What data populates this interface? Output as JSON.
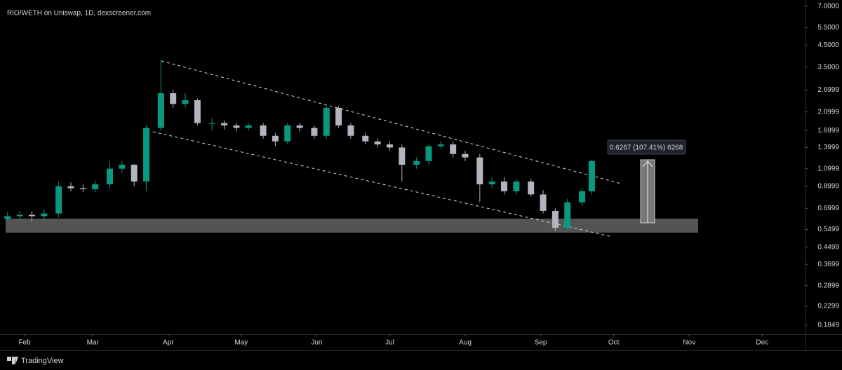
{
  "chart_data": {
    "type": "candlestick",
    "title": "RIO/WETH on Uniswap, 1D, dexscreener.com",
    "annotation": "0.6267 (107.41%) 6268",
    "x": [
      -7,
      -2,
      3,
      8,
      14,
      19,
      24,
      29,
      35,
      40,
      45,
      50,
      56,
      61,
      66,
      71,
      77,
      82,
      87,
      92,
      98,
      103,
      108,
      113,
      119,
      124,
      129,
      134,
      140,
      145,
      150,
      155,
      161,
      166,
      171,
      176,
      181,
      187,
      192,
      197,
      202,
      208,
      213,
      218,
      223,
      229,
      233
    ],
    "open": [
      0.62,
      0.64,
      0.65,
      0.64,
      0.66,
      0.9,
      0.88,
      0.87,
      0.92,
      1.1,
      1.15,
      0.95,
      1.75,
      2.6,
      2.3,
      2.4,
      1.85,
      1.85,
      1.8,
      1.75,
      1.8,
      1.6,
      1.5,
      1.8,
      1.75,
      1.6,
      2.2,
      1.8,
      1.6,
      1.5,
      1.45,
      1.4,
      1.15,
      1.2,
      1.42,
      1.45,
      1.3,
      1.25,
      0.92,
      0.95,
      0.85,
      0.95,
      0.82,
      0.68,
      0.56,
      0.75,
      0.85
    ],
    "high": [
      0.67,
      0.68,
      0.68,
      0.69,
      0.95,
      0.94,
      0.92,
      0.96,
      1.2,
      1.2,
      1.16,
      1.8,
      3.8,
      2.7,
      2.6,
      2.45,
      1.95,
      1.9,
      1.85,
      1.85,
      1.85,
      1.65,
      1.85,
      1.85,
      1.8,
      2.3,
      2.25,
      1.85,
      1.65,
      1.55,
      1.5,
      1.45,
      1.25,
      1.45,
      1.5,
      1.5,
      1.35,
      1.3,
      1.0,
      1.0,
      0.98,
      0.98,
      0.86,
      0.7,
      0.78,
      0.88,
      1.22
    ],
    "low": [
      0.6,
      0.61,
      0.6,
      0.6,
      0.63,
      0.85,
      0.84,
      0.84,
      0.88,
      1.05,
      0.9,
      0.85,
      1.7,
      2.2,
      2.2,
      1.8,
      1.7,
      1.72,
      1.68,
      1.7,
      1.55,
      1.42,
      1.45,
      1.68,
      1.55,
      1.55,
      1.75,
      1.55,
      1.45,
      1.4,
      1.35,
      0.95,
      1.1,
      1.15,
      1.38,
      1.25,
      1.2,
      0.75,
      0.88,
      0.82,
      0.82,
      0.8,
      0.66,
      0.54,
      0.55,
      0.72,
      0.82
    ],
    "close": [
      0.64,
      0.65,
      0.64,
      0.66,
      0.9,
      0.88,
      0.87,
      0.92,
      1.1,
      1.15,
      0.95,
      1.75,
      2.6,
      2.3,
      2.4,
      1.85,
      1.85,
      1.8,
      1.75,
      1.8,
      1.6,
      1.5,
      1.8,
      1.75,
      1.6,
      2.2,
      1.8,
      1.6,
      1.5,
      1.45,
      1.4,
      1.15,
      1.2,
      1.42,
      1.45,
      1.3,
      1.25,
      0.92,
      0.95,
      0.85,
      0.95,
      0.82,
      0.68,
      0.56,
      0.75,
      0.85,
      1.2
    ],
    "up_color": "#089981",
    "down_color": "#b2b5be",
    "xlim": [
      -7.8,
      320.5
    ],
    "xticks": [
      {
        "value": 0,
        "label": "Feb"
      },
      {
        "value": 28,
        "label": "Mar"
      },
      {
        "value": 59,
        "label": "Apr"
      },
      {
        "value": 89,
        "label": "May"
      },
      {
        "value": 120,
        "label": "Jun"
      },
      {
        "value": 150,
        "label": "Jul"
      },
      {
        "value": 181,
        "label": "Aug"
      },
      {
        "value": 212,
        "label": "Sep"
      },
      {
        "value": 242,
        "label": "Oct"
      },
      {
        "value": 273,
        "label": "Nov"
      },
      {
        "value": 303,
        "label": "Dec"
      }
    ],
    "ylim": [
      0.1666,
      7.52
    ],
    "yticks": [
      {
        "value": 7,
        "label": "7.0000"
      },
      {
        "value": 5.5,
        "label": "5.5000"
      },
      {
        "value": 4.5,
        "label": "4.5000"
      },
      {
        "value": 3.5,
        "label": "3.5000"
      },
      2.6999,
      2.0999,
      1.6999,
      1.3999,
      1.0999,
      0.8999,
      0.6999,
      0.5499,
      0.4499,
      0.3699,
      0.2899,
      0.2299,
      0.1849
    ],
    "log_scale": true,
    "grid": false
  },
  "footer": "TradingView"
}
